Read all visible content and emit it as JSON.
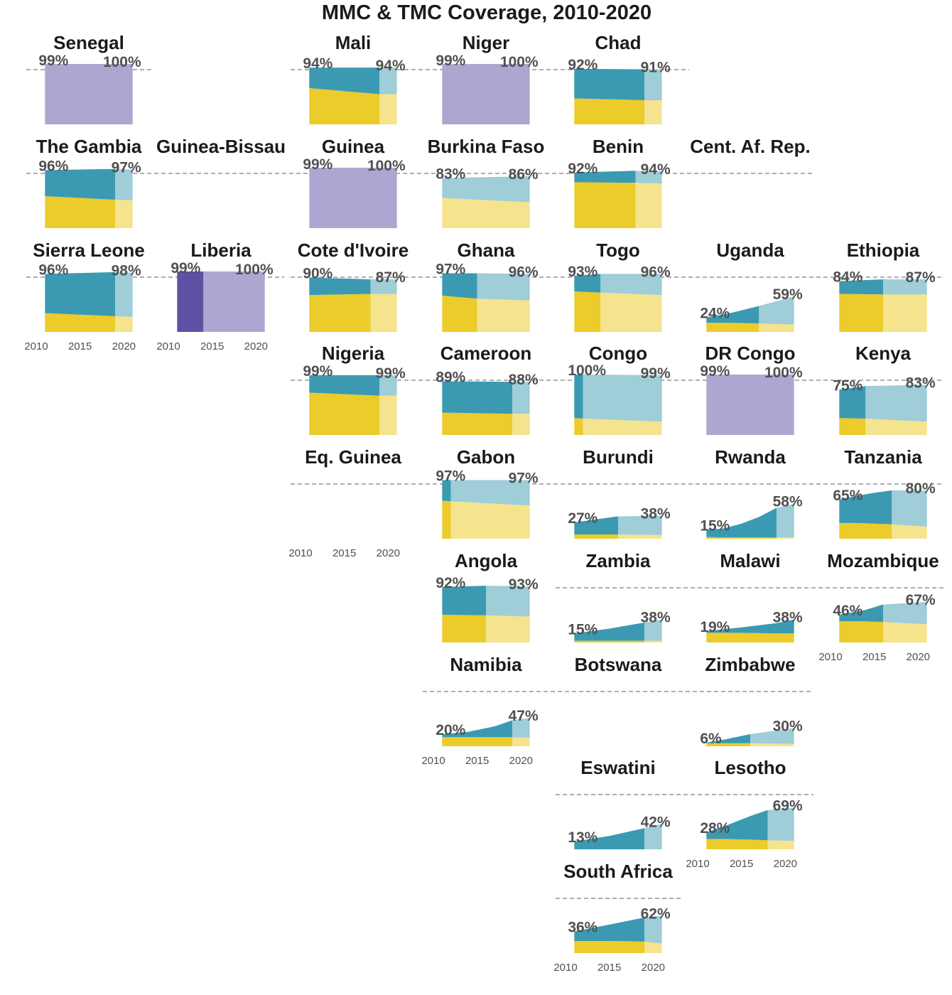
{
  "title": "MMC & TMC Coverage, 2010-2020",
  "colors": {
    "mmc": "#3b9ab2",
    "tmc": "#ebcc2a",
    "mmc_projected": "#9fcdd8",
    "tmc_projected": "#f5e38e",
    "total": "#aea6d0",
    "total_dark": "#6050a3",
    "reference_line": "#7f7f7f"
  },
  "chart_data": {
    "type": "area",
    "x_range": [
      2010,
      2020
    ],
    "y_range": [
      0,
      1
    ],
    "reference_line": 1,
    "x_ticks": [
      2010,
      2015,
      2020
    ],
    "panels": [
      {
        "name": "Senegal",
        "start_label": "99%",
        "end_label": "100%",
        "kind": "total",
        "years": [
          2011,
          2021
        ],
        "total": [
          0.99,
          1.0
        ]
      },
      {
        "name": "Mali",
        "start_label": "94%",
        "end_label": "94%",
        "kind": "stack",
        "years": [
          2011,
          2019,
          2021
        ],
        "tmc": [
          0.6,
          0.5,
          0.5
        ],
        "mmc": [
          0.34,
          0.44,
          0.44
        ],
        "proj_from": 2019
      },
      {
        "name": "Niger",
        "start_label": "99%",
        "end_label": "100%",
        "kind": "total",
        "years": [
          2011,
          2021
        ],
        "total": [
          0.99,
          1.0
        ]
      },
      {
        "name": "Chad",
        "start_label": "92%",
        "end_label": "91%",
        "kind": "stack",
        "years": [
          2011,
          2019,
          2021
        ],
        "tmc": [
          0.43,
          0.4,
          0.4
        ],
        "mmc": [
          0.49,
          0.51,
          0.51
        ],
        "proj_from": 2019
      },
      {
        "name": "The Gambia",
        "start_label": "96%",
        "end_label": "97%",
        "kind": "stack",
        "years": [
          2011,
          2019,
          2021
        ],
        "tmc": [
          0.53,
          0.47,
          0.46
        ],
        "mmc": [
          0.43,
          0.51,
          0.51
        ],
        "proj_from": 2019
      },
      {
        "name": "Guinea-Bissau",
        "kind": "empty"
      },
      {
        "name": "Guinea",
        "start_label": "99%",
        "end_label": "100%",
        "kind": "total",
        "years": [
          2011,
          2021
        ],
        "total": [
          0.99,
          1.0
        ]
      },
      {
        "name": "Burkina Faso",
        "start_label": "83%",
        "end_label": "86%",
        "kind": "stack",
        "years": [
          2011,
          2021
        ],
        "tmc": [
          0.5,
          0.43
        ],
        "mmc": [
          0.33,
          0.43
        ],
        "proj_from": 2011
      },
      {
        "name": "Benin",
        "start_label": "92%",
        "end_label": "94%",
        "kind": "stack",
        "years": [
          2011,
          2018,
          2021
        ],
        "tmc": [
          0.76,
          0.75,
          0.74
        ],
        "mmc": [
          0.16,
          0.2,
          0.2
        ],
        "proj_from": 2018
      },
      {
        "name": "Cent. Af. Rep.",
        "kind": "empty"
      },
      {
        "name": "Sierra Leone",
        "start_label": "96%",
        "end_label": "98%",
        "kind": "stack",
        "years": [
          2011,
          2019,
          2021
        ],
        "tmc": [
          0.31,
          0.26,
          0.25
        ],
        "mmc": [
          0.65,
          0.73,
          0.73
        ],
        "proj_from": 2019
      },
      {
        "name": "Liberia",
        "start_label": "99%",
        "end_label": "100%",
        "kind": "total",
        "years": [
          2011,
          2021
        ],
        "total": [
          0.99,
          1.0
        ],
        "dark_until": 2014
      },
      {
        "name": "Cote d'Ivoire",
        "start_label": "90%",
        "end_label": "87%",
        "kind": "stack",
        "years": [
          2011,
          2018,
          2021
        ],
        "tmc": [
          0.61,
          0.63,
          0.63
        ],
        "mmc": [
          0.29,
          0.24,
          0.24
        ],
        "proj_from": 2018
      },
      {
        "name": "Ghana",
        "start_label": "97%",
        "end_label": "96%",
        "kind": "stack",
        "years": [
          2011,
          2015,
          2021
        ],
        "tmc": [
          0.6,
          0.55,
          0.52
        ],
        "mmc": [
          0.37,
          0.42,
          0.44
        ],
        "proj_from": 2015
      },
      {
        "name": "Togo",
        "start_label": "93%",
        "end_label": "96%",
        "kind": "stack",
        "years": [
          2011,
          2014,
          2021
        ],
        "tmc": [
          0.67,
          0.65,
          0.61
        ],
        "mmc": [
          0.26,
          0.31,
          0.35
        ],
        "proj_from": 2014
      },
      {
        "name": "Uganda",
        "start_label": "24%",
        "end_label": "59%",
        "kind": "stack",
        "years": [
          2011,
          2014,
          2017,
          2021
        ],
        "tmc": [
          0.15,
          0.15,
          0.14,
          0.12
        ],
        "mmc": [
          0.09,
          0.17,
          0.29,
          0.47
        ],
        "proj_from": 2017
      },
      {
        "name": "Ethiopia",
        "start_label": "84%",
        "end_label": "87%",
        "kind": "stack",
        "years": [
          2011,
          2016,
          2021
        ],
        "tmc": [
          0.63,
          0.62,
          0.62
        ],
        "mmc": [
          0.21,
          0.25,
          0.25
        ],
        "proj_from": 2016
      },
      {
        "name": "Nigeria",
        "start_label": "99%",
        "end_label": "99%",
        "kind": "stack",
        "years": [
          2011,
          2019,
          2021
        ],
        "tmc": [
          0.7,
          0.65,
          0.65
        ],
        "mmc": [
          0.29,
          0.34,
          0.34
        ],
        "proj_from": 2019
      },
      {
        "name": "Cameroon",
        "start_label": "89%",
        "end_label": "88%",
        "kind": "stack",
        "years": [
          2011,
          2019,
          2021
        ],
        "tmc": [
          0.37,
          0.35,
          0.35
        ],
        "mmc": [
          0.52,
          0.53,
          0.53
        ],
        "proj_from": 2019
      },
      {
        "name": "Congo",
        "start_label": "100%",
        "end_label": "99%",
        "kind": "stack",
        "years": [
          2011,
          2012,
          2021
        ],
        "tmc": [
          0.28,
          0.27,
          0.22
        ],
        "mmc": [
          0.72,
          0.73,
          0.77
        ],
        "proj_from": 2012
      },
      {
        "name": "DR Congo",
        "start_label": "99%",
        "end_label": "100%",
        "kind": "total",
        "years": [
          2011,
          2021
        ],
        "total": [
          0.99,
          1.0
        ]
      },
      {
        "name": "Kenya",
        "start_label": "75%",
        "end_label": "83%",
        "kind": "stack",
        "years": [
          2011,
          2014,
          2021
        ],
        "tmc": [
          0.28,
          0.27,
          0.22
        ],
        "mmc": [
          0.47,
          0.54,
          0.61
        ],
        "proj_from": 2014
      },
      {
        "name": "Eq. Guinea",
        "kind": "empty"
      },
      {
        "name": "Gabon",
        "start_label": "97%",
        "end_label": "97%",
        "kind": "stack",
        "years": [
          2011,
          2012,
          2021
        ],
        "tmc": [
          0.63,
          0.62,
          0.55
        ],
        "mmc": [
          0.34,
          0.35,
          0.42
        ],
        "proj_from": 2012
      },
      {
        "name": "Burundi",
        "start_label": "27%",
        "end_label": "38%",
        "kind": "stack",
        "years": [
          2011,
          2016,
          2021
        ],
        "tmc": [
          0.07,
          0.07,
          0.06
        ],
        "mmc": [
          0.2,
          0.3,
          0.32
        ],
        "proj_from": 2016
      },
      {
        "name": "Rwanda",
        "start_label": "15%",
        "end_label": "58%",
        "kind": "stack",
        "years": [
          2011,
          2013,
          2015,
          2017,
          2019,
          2021
        ],
        "tmc": [
          0.03,
          0.02,
          0.02,
          0.02,
          0.02,
          0.02
        ],
        "mmc": [
          0.12,
          0.15,
          0.23,
          0.34,
          0.49,
          0.56
        ],
        "proj_from": 2019
      },
      {
        "name": "Tanzania",
        "start_label": "65%",
        "end_label": "80%",
        "kind": "stack",
        "years": [
          2011,
          2013,
          2015,
          2017,
          2021
        ],
        "tmc": [
          0.26,
          0.26,
          0.25,
          0.24,
          0.2
        ],
        "mmc": [
          0.39,
          0.45,
          0.51,
          0.56,
          0.6
        ],
        "proj_from": 2017
      },
      {
        "name": "Angola",
        "start_label": "92%",
        "end_label": "93%",
        "kind": "stack",
        "years": [
          2011,
          2016,
          2021
        ],
        "tmc": [
          0.46,
          0.45,
          0.43
        ],
        "mmc": [
          0.46,
          0.49,
          0.5
        ],
        "proj_from": 2016
      },
      {
        "name": "Zambia",
        "start_label": "15%",
        "end_label": "38%",
        "kind": "stack",
        "years": [
          2011,
          2015,
          2019,
          2021
        ],
        "tmc": [
          0.03,
          0.03,
          0.03,
          0.03
        ],
        "mmc": [
          0.12,
          0.2,
          0.3,
          0.35
        ],
        "proj_from": 2019
      },
      {
        "name": "Malawi",
        "start_label": "19%",
        "end_label": "38%",
        "kind": "stack",
        "years": [
          2011,
          2015,
          2019,
          2021
        ],
        "tmc": [
          0.16,
          0.16,
          0.15,
          0.15
        ],
        "mmc": [
          0.03,
          0.09,
          0.17,
          0.23
        ],
        "proj_from": 2021
      },
      {
        "name": "Mozambique",
        "start_label": "46%",
        "end_label": "67%",
        "kind": "stack",
        "years": [
          2011,
          2014,
          2016,
          2021
        ],
        "tmc": [
          0.35,
          0.35,
          0.34,
          0.3
        ],
        "mmc": [
          0.11,
          0.19,
          0.29,
          0.37
        ],
        "proj_from": 2016
      },
      {
        "name": "Namibia",
        "start_label": "20%",
        "end_label": "47%",
        "kind": "stack",
        "years": [
          2011,
          2014,
          2017,
          2019,
          2021
        ],
        "tmc": [
          0.15,
          0.15,
          0.15,
          0.15,
          0.14
        ],
        "mmc": [
          0.05,
          0.09,
          0.18,
          0.28,
          0.33
        ],
        "proj_from": 2019
      },
      {
        "name": "Botswana",
        "kind": "empty"
      },
      {
        "name": "Zimbabwe",
        "start_label": "6%",
        "end_label": "30%",
        "kind": "stack",
        "years": [
          2011,
          2013,
          2016,
          2021
        ],
        "tmc": [
          0.05,
          0.05,
          0.05,
          0.04
        ],
        "mmc": [
          0.01,
          0.06,
          0.15,
          0.26
        ],
        "proj_from": 2016
      },
      {
        "name": "Eswatini",
        "start_label": "13%",
        "end_label": "42%",
        "kind": "stack",
        "years": [
          2011,
          2015,
          2019,
          2021
        ],
        "tmc": [
          0.0,
          0.0,
          0.0,
          0.0
        ],
        "mmc": [
          0.13,
          0.22,
          0.35,
          0.42
        ],
        "proj_from": 2019
      },
      {
        "name": "Lesotho",
        "start_label": "28%",
        "end_label": "69%",
        "kind": "stack",
        "years": [
          2011,
          2013,
          2016,
          2018,
          2021
        ],
        "tmc": [
          0.17,
          0.17,
          0.16,
          0.15,
          0.14
        ],
        "mmc": [
          0.11,
          0.21,
          0.39,
          0.5,
          0.55
        ],
        "proj_from": 2018
      },
      {
        "name": "South Africa",
        "start_label": "36%",
        "end_label": "62%",
        "kind": "stack",
        "years": [
          2011,
          2015,
          2019,
          2021
        ],
        "tmc": [
          0.2,
          0.2,
          0.19,
          0.16
        ],
        "mmc": [
          0.16,
          0.27,
          0.4,
          0.46
        ],
        "proj_from": 2019
      }
    ]
  }
}
